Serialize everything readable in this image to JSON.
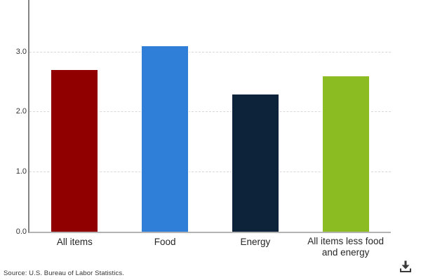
{
  "chart_data": {
    "type": "bar",
    "title": "",
    "xlabel": "",
    "ylabel": "",
    "categories": [
      "All items",
      "Food",
      "Energy",
      "All items less food and energy"
    ],
    "values": [
      2.7,
      3.1,
      2.3,
      2.6
    ],
    "bar_colors": [
      "#910000",
      "#2f7ed8",
      "#0d233a",
      "#8bbc21"
    ],
    "ylim": [
      0,
      3.86
    ],
    "yticks": [
      0,
      1,
      2,
      3
    ],
    "ytick_labels": [
      "0.0",
      "1.0",
      "2.0",
      "3.0"
    ],
    "grid": "horizontal-dashed",
    "gridline_color": "#d8d8d8",
    "axis_line_color": "#848484",
    "baseline_color": "#b3b3b3",
    "legend": "none"
  },
  "footer": {
    "source": "Source: U.S. Bureau of Labor Statistics.",
    "download_icon": "download-icon",
    "icon_color": "#3a3a3a"
  }
}
